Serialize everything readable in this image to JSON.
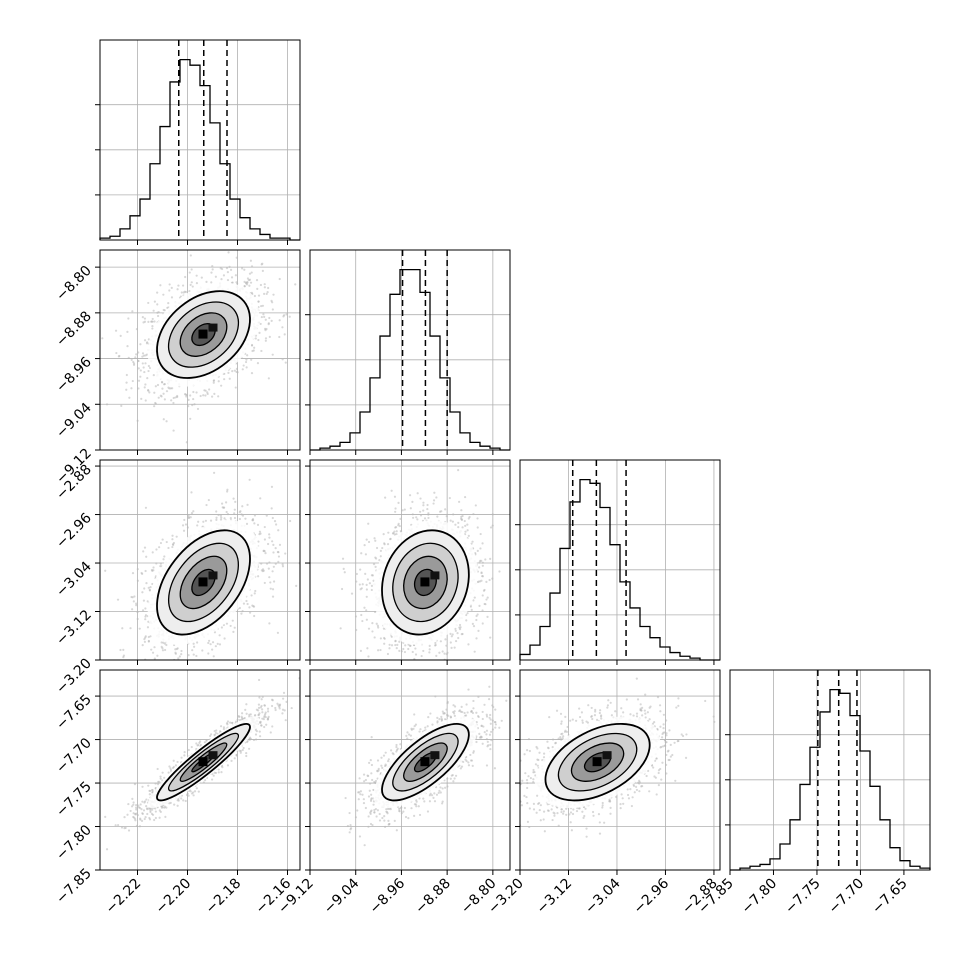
{
  "chart_data": {
    "type": "corner",
    "parameters": [
      {
        "range": [
          -2.235,
          -2.155
        ],
        "ticks": [
          -2.22,
          -2.2,
          -2.18,
          -2.16
        ],
        "tick_labels": [
          "−2.22",
          "−2.20",
          "−2.18",
          "−2.16"
        ],
        "quantiles": [
          -2.2035,
          -2.1935,
          -2.1842
        ],
        "mean": -2.1936,
        "sd": 0.0093
      },
      {
        "range": [
          -9.12,
          -8.77
        ],
        "ticks": [
          -9.12,
          -9.04,
          -8.96,
          -8.88,
          -8.8
        ],
        "tick_labels": [
          "−9.12",
          "−9.04",
          "−8.96",
          "−8.88",
          "−8.80"
        ],
        "quantiles": [
          -8.958,
          -8.918,
          -8.88
        ],
        "mean": -8.918,
        "sd": 0.038
      },
      {
        "range": [
          -3.2,
          -2.87
        ],
        "ticks": [
          -3.2,
          -3.12,
          -3.04,
          -2.96,
          -2.88
        ],
        "tick_labels": [
          "−3.20",
          "−3.12",
          "−3.04",
          "−2.96",
          "−2.88"
        ],
        "quantiles": [
          -3.113,
          -3.074,
          -3.025
        ],
        "mean": -3.072,
        "sd": 0.043
      },
      {
        "range": [
          -7.85,
          -7.62
        ],
        "ticks": [
          -7.85,
          -7.8,
          -7.75,
          -7.7,
          -7.65
        ],
        "tick_labels": [
          "−7.85",
          "−7.80",
          "−7.75",
          "−7.70",
          "−7.65"
        ],
        "quantiles": [
          -7.749,
          -7.725,
          -7.704
        ],
        "mean": -7.726,
        "sd": 0.022
      }
    ],
    "histograms": [
      {
        "dim": 0,
        "bins": 20,
        "counts": [
          1,
          2,
          6,
          13,
          22,
          41,
          61,
          85,
          97,
          94,
          83,
          63,
          41,
          22,
          12,
          6,
          3,
          1,
          1,
          0
        ]
      },
      {
        "dim": 1,
        "bins": 20,
        "counts": [
          0,
          1,
          2,
          4,
          9,
          20,
          38,
          60,
          82,
          95,
          95,
          83,
          60,
          38,
          20,
          9,
          4,
          2,
          1,
          0
        ]
      },
      {
        "dim": 2,
        "bins": 20,
        "counts": [
          3,
          8,
          18,
          36,
          60,
          85,
          97,
          95,
          82,
          62,
          42,
          28,
          18,
          12,
          7,
          4,
          2,
          1,
          0,
          0
        ]
      },
      {
        "dim": 3,
        "bins": 20,
        "counts": [
          0,
          1,
          2,
          3,
          6,
          14,
          27,
          46,
          66,
          85,
          97,
          95,
          83,
          64,
          45,
          27,
          12,
          5,
          2,
          1
        ]
      }
    ],
    "pairs": [
      {
        "row": 1,
        "col": 0,
        "correlation": 0.35
      },
      {
        "row": 2,
        "col": 0,
        "correlation": 0.45
      },
      {
        "row": 2,
        "col": 1,
        "correlation": 0.15
      },
      {
        "row": 3,
        "col": 0,
        "correlation": 0.92
      },
      {
        "row": 3,
        "col": 1,
        "correlation": 0.72
      },
      {
        "row": 3,
        "col": 2,
        "correlation": 0.45
      }
    ],
    "contour_levels_sigma": [
      0.5,
      1.0,
      1.5,
      2.0
    ],
    "grid": true,
    "colors": {
      "line": "#000000",
      "grid": "#b0b0b0",
      "points": "#b8b8b8"
    }
  }
}
